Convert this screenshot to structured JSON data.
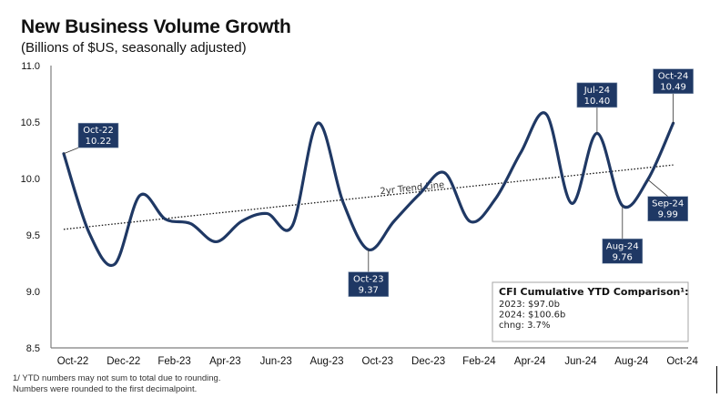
{
  "chart_data": {
    "type": "line",
    "title": "New Business Volume Growth",
    "subtitle": "(Billions of $US, seasonally adjusted)",
    "xlabel": "",
    "ylabel": "",
    "ylim": [
      8.5,
      11.0
    ],
    "yticks": [
      "8.5",
      "9.0",
      "9.5",
      "10.0",
      "10.5",
      "11.0"
    ],
    "ytick_values": [
      8.5,
      9.0,
      9.5,
      10.0,
      10.5,
      11.0
    ],
    "xtick_labels": [
      "Oct-22",
      "Dec-22",
      "Feb-23",
      "Apr-23",
      "Jun-23",
      "Aug-23",
      "Oct-23",
      "Dec-23",
      "Feb-24",
      "Apr-24",
      "Jun-24",
      "Aug-24",
      "Oct-24"
    ],
    "grid": false,
    "x": [
      "Oct-22",
      "Nov-22",
      "Dec-22",
      "Jan-23",
      "Feb-23",
      "Mar-23",
      "Apr-23",
      "May-23",
      "Jun-23",
      "Jul-23",
      "Aug-23",
      "Sep-23",
      "Oct-23",
      "Nov-23",
      "Dec-23",
      "Jan-24",
      "Feb-24",
      "Mar-24",
      "Apr-24",
      "May-24",
      "Jun-24",
      "Jul-24",
      "Aug-24",
      "Sep-24",
      "Oct-24"
    ],
    "series": [
      {
        "name": "New Business Volume",
        "color": "#1f3864",
        "values": [
          10.22,
          9.52,
          9.24,
          9.85,
          9.64,
          9.6,
          9.44,
          9.62,
          9.69,
          9.58,
          10.49,
          9.79,
          9.37,
          9.62,
          9.86,
          10.05,
          9.62,
          9.82,
          10.23,
          10.57,
          9.78,
          10.4,
          9.76,
          9.99,
          10.49
        ]
      }
    ],
    "trend_line": {
      "label": "2yr Trend Line",
      "start": 9.55,
      "end": 10.12,
      "style": "dotted"
    },
    "annotations": [
      {
        "month": "Oct-22",
        "value": "10.22",
        "position": "right-above"
      },
      {
        "month": "Oct-23",
        "value": "9.37",
        "position": "below"
      },
      {
        "month": "Jul-24",
        "value": "10.40",
        "position": "above"
      },
      {
        "month": "Aug-24",
        "value": "9.76",
        "position": "below"
      },
      {
        "month": "Sep-24",
        "value": "9.99",
        "position": "below-right"
      },
      {
        "month": "Oct-24",
        "value": "10.49",
        "position": "above"
      }
    ],
    "legend": "none"
  },
  "ytd_box": {
    "heading": "CFI Cumulative YTD Comparison¹:",
    "lines": [
      "2023: $97.0b",
      "2024: $100.6b",
      "chng: 3.7%"
    ]
  },
  "footnotes": [
    "1/ YTD numbers may not sum to total due to rounding.",
    "Numbers were rounded to the first decimalpoint."
  ],
  "colors": {
    "series": "#1f3864",
    "label_bg": "#1f3864",
    "label_text": "#ffffff"
  }
}
